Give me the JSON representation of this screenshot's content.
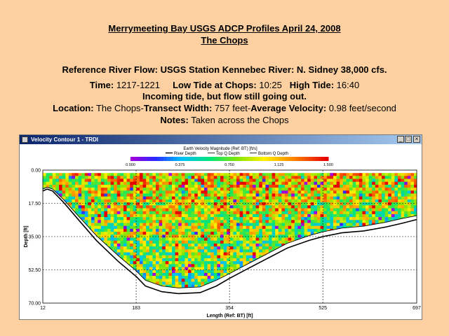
{
  "header": {
    "title": "Merrymeeting Bay USGS ADCP Profiles April 24, 2008",
    "subtitle": "The Chops",
    "reference": "Reference River Flow: USGS Station Kennebec River: N.  Sidney  38,000 cfs.",
    "time_label": "Time:",
    "time_value": "1217-1221",
    "low_tide_label": "Low Tide at Chops:",
    "low_tide_value": "10:25",
    "high_tide_label": "High Tide:",
    "high_tide_value": "16:40",
    "tide_note": "Incoming tide, but flow still going out.",
    "location_label": "Location:",
    "location_value": "The Chops-",
    "width_label": "Transect Width:",
    "width_value": "757 feet-",
    "velocity_label": "Average Velocity:",
    "velocity_value": "0.98 feet/second",
    "notes_label": "Notes:",
    "notes_value": "Taken across the Chops"
  },
  "window": {
    "title": "Velocity Contour 1 - TRDI",
    "minimize_label": "_",
    "maximize_label": "□",
    "close_label": "×"
  },
  "chart_data": {
    "type": "heatmap",
    "title": "Earth Velocity Magnitude (Ref: BT) [ft/s]",
    "xlabel": "Length (Ref: BT) [ft]",
    "ylabel": "Depth [ft]",
    "xlim": [
      12,
      697
    ],
    "ylim": [
      0,
      70
    ],
    "x_ticks": [
      "12",
      "183",
      "354",
      "525",
      "697"
    ],
    "y_ticks": [
      "0.00",
      "17.50",
      "35.00",
      "52.50",
      "70.00"
    ],
    "colorbar_range": [
      0,
      1.5
    ],
    "colorbar_ticks": [
      "0.000",
      "0.375",
      "0.750",
      "1.125",
      "1.500"
    ],
    "legend": [
      "River Depth",
      "Top Q Depth",
      "Bottom Q Depth"
    ],
    "river_depth": {
      "x": [
        12,
        20,
        30,
        50,
        80,
        110,
        150,
        183,
        200,
        230,
        260,
        300,
        330,
        354,
        380,
        420,
        460,
        500,
        525,
        560,
        600,
        640,
        670,
        697
      ],
      "y": [
        11,
        10,
        11,
        17,
        27,
        37,
        48,
        56,
        61,
        64,
        65,
        64.5,
        61,
        57,
        53,
        47,
        41,
        37,
        35,
        33,
        32,
        30,
        28,
        26
      ]
    },
    "bottom_q_depth": {
      "x": [
        12,
        20,
        30,
        50,
        80,
        110,
        150,
        183,
        200,
        230,
        260,
        300,
        330,
        354,
        380,
        420,
        460,
        500,
        525,
        560,
        600,
        640,
        670,
        697
      ],
      "y": [
        10,
        9,
        10,
        15.5,
        25,
        34.5,
        45,
        53,
        58,
        61,
        62,
        61.5,
        58,
        54.5,
        50.5,
        44.5,
        38.5,
        34.5,
        32.5,
        30.5,
        29.5,
        27.5,
        25.5,
        24
      ]
    },
    "grid": true
  },
  "colors": {
    "background": "#fcd0a0",
    "titlebar_start": "#0a246a",
    "titlebar_end": "#a6caf0"
  }
}
